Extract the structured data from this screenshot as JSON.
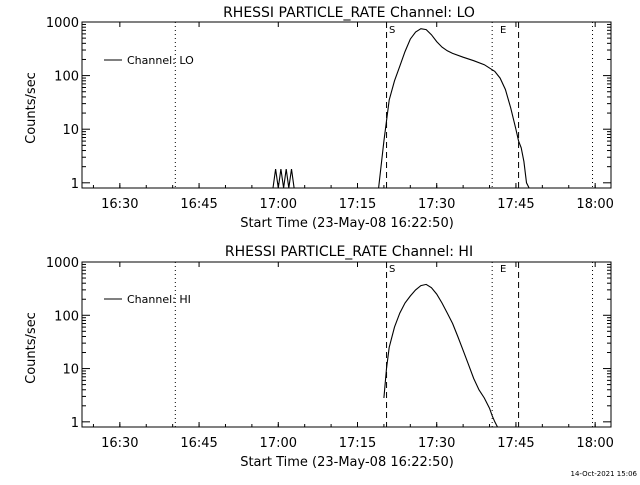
{
  "chart_data": [
    {
      "type": "line",
      "title": "RHESSI PARTICLE_RATE Channel: LO",
      "xlabel": "Start Time (23-May-08 16:22:50)",
      "ylabel": "Counts/sec",
      "xlim": [
        "16:22:50",
        "18:03:00"
      ],
      "ylim": [
        0.8,
        1000
      ],
      "yscale": "log",
      "x_ticks": [
        "16:30",
        "16:45",
        "17:00",
        "17:15",
        "17:30",
        "17:45",
        "18:00"
      ],
      "y_ticks": [
        "1",
        "10",
        "100",
        "1000"
      ],
      "grid": false,
      "legend": "top-left",
      "series": [
        {
          "name": "Channel: LO",
          "x": [
            "16:59:00",
            "16:59:30",
            "17:00:00",
            "17:00:30",
            "17:01:00",
            "17:01:30",
            "17:02:00",
            "17:02:30",
            "17:03:00",
            "17:03:30",
            "17:04:00",
            "17:19:00",
            "17:20:00",
            "17:21:00",
            "17:22:00",
            "17:23:00",
            "17:24:00",
            "17:25:00",
            "17:26:00",
            "17:27:00",
            "17:28:00",
            "17:29:00",
            "17:30:00",
            "17:31:00",
            "17:32:00",
            "17:33:00",
            "17:35:00",
            "17:37:00",
            "17:39:00",
            "17:41:00",
            "17:42:00",
            "17:43:00",
            "17:44:00",
            "17:45:00",
            "17:45:30",
            "17:46:00",
            "17:46:30",
            "17:47:00",
            "17:47:30"
          ],
          "y": [
            0.8,
            1.8,
            0.8,
            1.8,
            0.8,
            1.8,
            0.8,
            1.8,
            0.8,
            0.8,
            0.8,
            0.8,
            6,
            35,
            80,
            150,
            280,
            480,
            650,
            750,
            720,
            580,
            430,
            340,
            290,
            260,
            220,
            190,
            160,
            120,
            90,
            55,
            25,
            10,
            6,
            4.5,
            2.5,
            1,
            0.8
          ]
        }
      ],
      "annotations": [
        {
          "text": "S",
          "x": "17:20:30",
          "style": "dashed"
        },
        {
          "text": "E",
          "x": "17:45:30",
          "style": "dashed"
        },
        {
          "text": "",
          "x": "16:40:30",
          "style": "dotted"
        },
        {
          "text": "",
          "x": "17:40:30",
          "style": "dotted"
        },
        {
          "text": "",
          "x": "17:59:30",
          "style": "dotted"
        }
      ]
    },
    {
      "type": "line",
      "title": "RHESSI PARTICLE_RATE Channel: HI",
      "xlabel": "Start Time (23-May-08 16:22:50)",
      "ylabel": "Counts/sec",
      "xlim": [
        "16:22:50",
        "18:03:00"
      ],
      "ylim": [
        0.8,
        1000
      ],
      "yscale": "log",
      "x_ticks": [
        "16:30",
        "16:45",
        "17:00",
        "17:15",
        "17:30",
        "17:45",
        "18:00"
      ],
      "y_ticks": [
        "1",
        "10",
        "100",
        "1000"
      ],
      "grid": false,
      "legend": "top-left",
      "series": [
        {
          "name": "Channel: HI",
          "x": [
            "17:20:00",
            "17:20:30",
            "17:21:00",
            "17:22:00",
            "17:23:00",
            "17:24:00",
            "17:25:00",
            "17:26:00",
            "17:27:00",
            "17:28:00",
            "17:29:00",
            "17:30:00",
            "17:31:00",
            "17:32:00",
            "17:33:00",
            "17:34:00",
            "17:35:00",
            "17:36:00",
            "17:37:00",
            "17:38:00",
            "17:39:00",
            "17:40:00",
            "17:40:30",
            "17:41:00",
            "17:41:30"
          ],
          "y": [
            2.8,
            10,
            25,
            60,
            110,
            170,
            230,
            300,
            360,
            380,
            330,
            250,
            170,
            110,
            70,
            40,
            22,
            12,
            6.5,
            4,
            2.8,
            1.8,
            1.3,
            1,
            0.8
          ]
        }
      ],
      "annotations": [
        {
          "text": "S",
          "x": "17:20:30",
          "style": "dashed"
        },
        {
          "text": "E",
          "x": "17:45:30",
          "style": "dashed"
        },
        {
          "text": "",
          "x": "16:40:30",
          "style": "dotted"
        },
        {
          "text": "",
          "x": "17:40:30",
          "style": "dotted"
        },
        {
          "text": "",
          "x": "17:59:30",
          "style": "dotted"
        }
      ]
    }
  ],
  "footer": {
    "timestamp": "14-Oct-2021 15:06"
  }
}
